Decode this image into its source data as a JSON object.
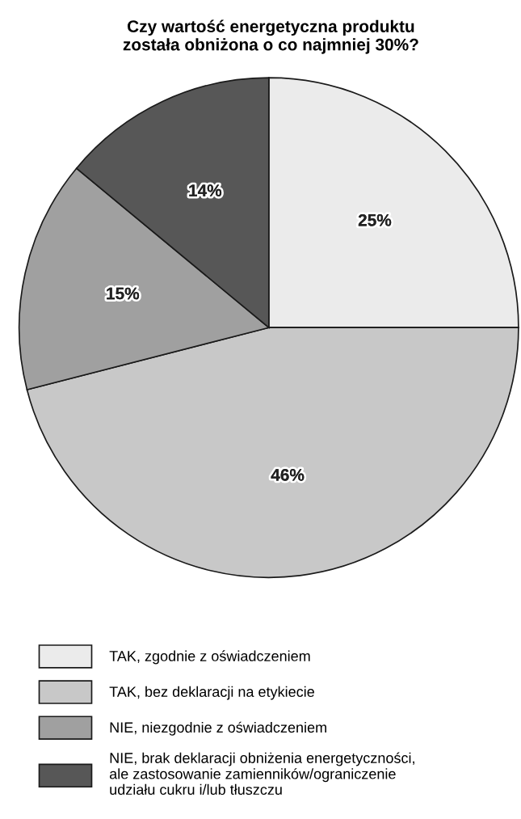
{
  "chart_data": {
    "type": "pie",
    "title": "Czy wartość energetyczna produktu\nzostała obniżona o co najmniej 30%?",
    "categories": [
      "TAK, zgodnie z oświadczeniem",
      "TAK, bez deklaracji na etykiecie",
      "NIE, niezgodnie z oświadczeniem",
      "NIE, brak deklaracji obniżenia energetyczności,\nale zastosowanie zamienników/ograniczenie\nudziału cukru i/lub tłuszczu"
    ],
    "values": [
      25,
      46,
      15,
      14
    ],
    "colors": [
      "#ebebeb",
      "#c8c8c8",
      "#a0a0a0",
      "#575757"
    ],
    "value_labels": [
      "25%",
      "46%",
      "15%",
      "14%"
    ],
    "legend": "bottom"
  }
}
